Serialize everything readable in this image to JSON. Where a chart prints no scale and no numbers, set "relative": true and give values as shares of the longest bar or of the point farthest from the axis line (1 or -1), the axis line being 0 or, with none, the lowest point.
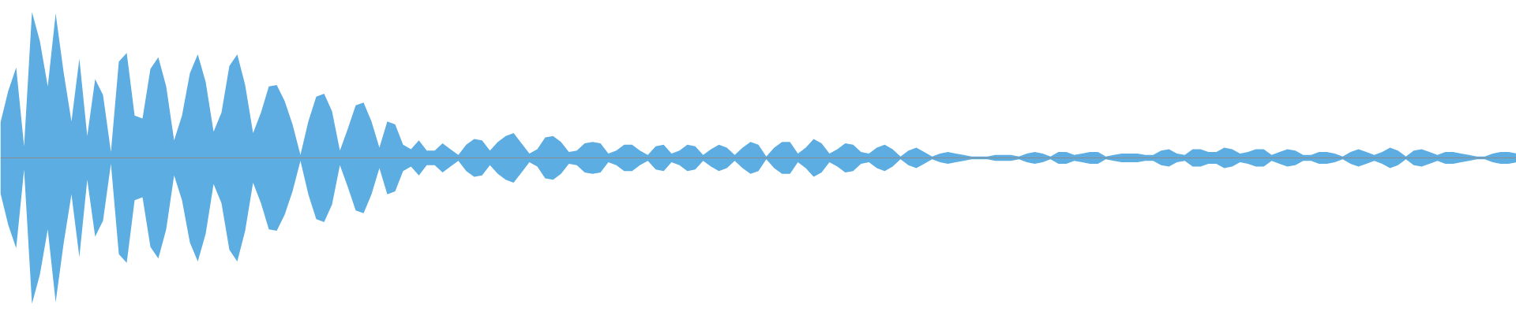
{
  "chart_data": {
    "type": "area",
    "relative": true,
    "categories": [
      null,
      null,
      null,
      null,
      null,
      null,
      null,
      null,
      null,
      null,
      null,
      null,
      null,
      null,
      null,
      null,
      null,
      null,
      null,
      null,
      null,
      null,
      null,
      null,
      null,
      null,
      null,
      null,
      null,
      null,
      null,
      null,
      null,
      null,
      null,
      null,
      null,
      null,
      null,
      null,
      null,
      null,
      null,
      null,
      null,
      null,
      null,
      null,
      null,
      null,
      null,
      null,
      null,
      null,
      null,
      null,
      null,
      null,
      null,
      null,
      null,
      null,
      null,
      null,
      null,
      null,
      null,
      null,
      null,
      null,
      null,
      null,
      null,
      null,
      null,
      null,
      null,
      null,
      null,
      null,
      null,
      null,
      null,
      null,
      null,
      null,
      null,
      null,
      null,
      null,
      null,
      null,
      null,
      null,
      null,
      null,
      null,
      null,
      null,
      null,
      null,
      null,
      null,
      null,
      null,
      null,
      null,
      null,
      null,
      null,
      null,
      null,
      null,
      null,
      null,
      null,
      null,
      null,
      null,
      null,
      null,
      null,
      null,
      null,
      null,
      null,
      null,
      null,
      null,
      null,
      null,
      null,
      null,
      null,
      null,
      null,
      null,
      null,
      null,
      null,
      null,
      null,
      null,
      null,
      null,
      null,
      null,
      null,
      null,
      null,
      null,
      null,
      null,
      null,
      null,
      null,
      null,
      null,
      null,
      null,
      null,
      null,
      null,
      null,
      null,
      null,
      null,
      null,
      null,
      null,
      null,
      null,
      null,
      null,
      null,
      null,
      null,
      null,
      null,
      null,
      null,
      null,
      null,
      null,
      null,
      null,
      null,
      null,
      null,
      null,
      null,
      null,
      null
    ],
    "series": [
      {
        "color": "#5dade2",
        "values": [
          0.24,
          0.46,
          0.62,
          0.08,
          1.0,
          0.8,
          0.49,
          0.99,
          0.59,
          0.25,
          0.68,
          0.15,
          0.54,
          0.43,
          0.04,
          0.66,
          0.72,
          0.29,
          0.27,
          0.61,
          0.69,
          0.49,
          0.12,
          0.29,
          0.58,
          0.71,
          0.52,
          0.18,
          0.31,
          0.63,
          0.71,
          0.5,
          0.17,
          0.31,
          0.49,
          0.5,
          0.39,
          0.23,
          0.02,
          0.25,
          0.42,
          0.44,
          0.32,
          0.05,
          0.2,
          0.36,
          0.38,
          0.25,
          0.07,
          0.25,
          0.23,
          0.09,
          0.06,
          0.12,
          0.05,
          0.05,
          0.1,
          0.06,
          0.02,
          0.09,
          0.13,
          0.12,
          0.05,
          0.11,
          0.15,
          0.17,
          0.1,
          0.03,
          0.06,
          0.14,
          0.15,
          0.11,
          0.04,
          0.05,
          0.1,
          0.11,
          0.1,
          0.03,
          0.05,
          0.09,
          0.09,
          0.05,
          0.02,
          0.08,
          0.09,
          0.03,
          0.05,
          0.09,
          0.08,
          0.02,
          0.06,
          0.09,
          0.07,
          0.02,
          0.07,
          0.11,
          0.09,
          0.01,
          0.07,
          0.11,
          0.11,
          0.03,
          0.07,
          0.13,
          0.1,
          0.03,
          0.06,
          0.1,
          0.09,
          0.04,
          0.03,
          0.07,
          0.09,
          0.06,
          0.01,
          0.05,
          0.07,
          0.04,
          0.01,
          0.03,
          0.04,
          0.03,
          0.02,
          0.01,
          0.01,
          0.01,
          0.02,
          0.02,
          0.02,
          0.01,
          0.03,
          0.04,
          0.03,
          0.01,
          0.04,
          0.04,
          0.02,
          0.03,
          0.04,
          0.04,
          0.01,
          0.02,
          0.03,
          0.03,
          0.03,
          0.02,
          0.02,
          0.05,
          0.06,
          0.03,
          0.02,
          0.06,
          0.06,
          0.04,
          0.04,
          0.07,
          0.06,
          0.03,
          0.04,
          0.06,
          0.06,
          0.02,
          0.04,
          0.06,
          0.05,
          0.02,
          0.02,
          0.04,
          0.04,
          0.03,
          0.01,
          0.04,
          0.06,
          0.04,
          0.02,
          0.04,
          0.07,
          0.05,
          0.01,
          0.05,
          0.06,
          0.04,
          0.02,
          0.04,
          0.04,
          0.03,
          0.02,
          0.01,
          0.01,
          0.03,
          0.04,
          0.04,
          0.03
        ]
      },
      {
        "color": "#5caee2",
        "values": [
          -0.24,
          -0.46,
          -0.62,
          -0.08,
          -1.0,
          -0.8,
          -0.49,
          -0.99,
          -0.59,
          -0.25,
          -0.68,
          -0.15,
          -0.54,
          -0.43,
          -0.04,
          -0.66,
          -0.72,
          -0.29,
          -0.27,
          -0.61,
          -0.69,
          -0.49,
          -0.12,
          -0.29,
          -0.58,
          -0.71,
          -0.52,
          -0.18,
          -0.31,
          -0.63,
          -0.71,
          -0.5,
          -0.17,
          -0.31,
          -0.49,
          -0.5,
          -0.39,
          -0.23,
          -0.02,
          -0.25,
          -0.42,
          -0.44,
          -0.32,
          -0.05,
          -0.2,
          -0.36,
          -0.38,
          -0.25,
          -0.07,
          -0.25,
          -0.23,
          -0.09,
          -0.06,
          -0.12,
          -0.05,
          -0.05,
          -0.1,
          -0.06,
          -0.02,
          -0.09,
          -0.13,
          -0.12,
          -0.05,
          -0.11,
          -0.15,
          -0.17,
          -0.1,
          -0.03,
          -0.06,
          -0.14,
          -0.15,
          -0.11,
          -0.04,
          -0.05,
          -0.1,
          -0.11,
          -0.1,
          -0.03,
          -0.05,
          -0.09,
          -0.09,
          -0.05,
          -0.02,
          -0.08,
          -0.09,
          -0.03,
          -0.05,
          -0.09,
          -0.08,
          -0.02,
          -0.06,
          -0.09,
          -0.07,
          -0.02,
          -0.07,
          -0.11,
          -0.09,
          -0.01,
          -0.07,
          -0.11,
          -0.11,
          -0.03,
          -0.07,
          -0.13,
          -0.1,
          -0.03,
          -0.06,
          -0.1,
          -0.09,
          -0.04,
          -0.03,
          -0.07,
          -0.09,
          -0.06,
          -0.01,
          -0.05,
          -0.07,
          -0.04,
          -0.01,
          -0.03,
          -0.04,
          -0.03,
          -0.02,
          -0.01,
          -0.01,
          -0.01,
          -0.02,
          -0.02,
          -0.02,
          -0.01,
          -0.03,
          -0.04,
          -0.03,
          -0.01,
          -0.04,
          -0.04,
          -0.02,
          -0.03,
          -0.04,
          -0.04,
          -0.01,
          -0.02,
          -0.03,
          -0.03,
          -0.03,
          -0.02,
          -0.02,
          -0.05,
          -0.06,
          -0.03,
          -0.02,
          -0.06,
          -0.06,
          -0.04,
          -0.04,
          -0.07,
          -0.06,
          -0.03,
          -0.04,
          -0.06,
          -0.06,
          -0.02,
          -0.04,
          -0.06,
          -0.05,
          -0.02,
          -0.02,
          -0.04,
          -0.04,
          -0.03,
          -0.01,
          -0.04,
          -0.06,
          -0.04,
          -0.02,
          -0.04,
          -0.07,
          -0.05,
          -0.01,
          -0.05,
          -0.06,
          -0.04,
          -0.02,
          -0.04,
          -0.04,
          -0.03,
          -0.02,
          -0.01,
          -0.01,
          -0.03,
          -0.04,
          -0.04,
          -0.03
        ]
      }
    ]
  }
}
